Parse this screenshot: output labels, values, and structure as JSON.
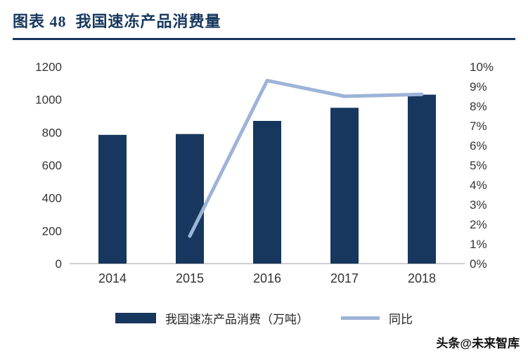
{
  "header": {
    "title": "图表 48  我国速冻产品消费量"
  },
  "watermark": "头条@未来智库",
  "colors": {
    "title": "#17375E",
    "bar": "#17375E",
    "line": "#9DB3D8",
    "axis_text": "#333333",
    "axis_line": "#BFBFBF"
  },
  "chart_data": {
    "type": "bar",
    "subtype": "combo-bar-line",
    "title": "图表 48  我国速冻产品消费量",
    "categories": [
      "2014",
      "2015",
      "2016",
      "2017",
      "2018"
    ],
    "series": [
      {
        "name": "我国速冻产品消费（万吨）",
        "type": "bar",
        "axis": "left",
        "color": "#17375E",
        "values": [
          785,
          790,
          870,
          950,
          1030
        ]
      },
      {
        "name": "同比",
        "type": "line",
        "axis": "right",
        "color": "#9DB3D8",
        "values": [
          null,
          1.4,
          9.3,
          8.5,
          8.6
        ]
      }
    ],
    "left_axis": {
      "min": 0,
      "max": 1200,
      "step": 200,
      "labels": [
        "0",
        "200",
        "400",
        "600",
        "800",
        "1000",
        "1200"
      ]
    },
    "right_axis": {
      "min": 0,
      "max": 10,
      "step": 1,
      "labels": [
        "0%",
        "1%",
        "2%",
        "3%",
        "4%",
        "5%",
        "6%",
        "7%",
        "8%",
        "9%",
        "10%"
      ]
    },
    "grid": false,
    "legend_position": "bottom"
  }
}
